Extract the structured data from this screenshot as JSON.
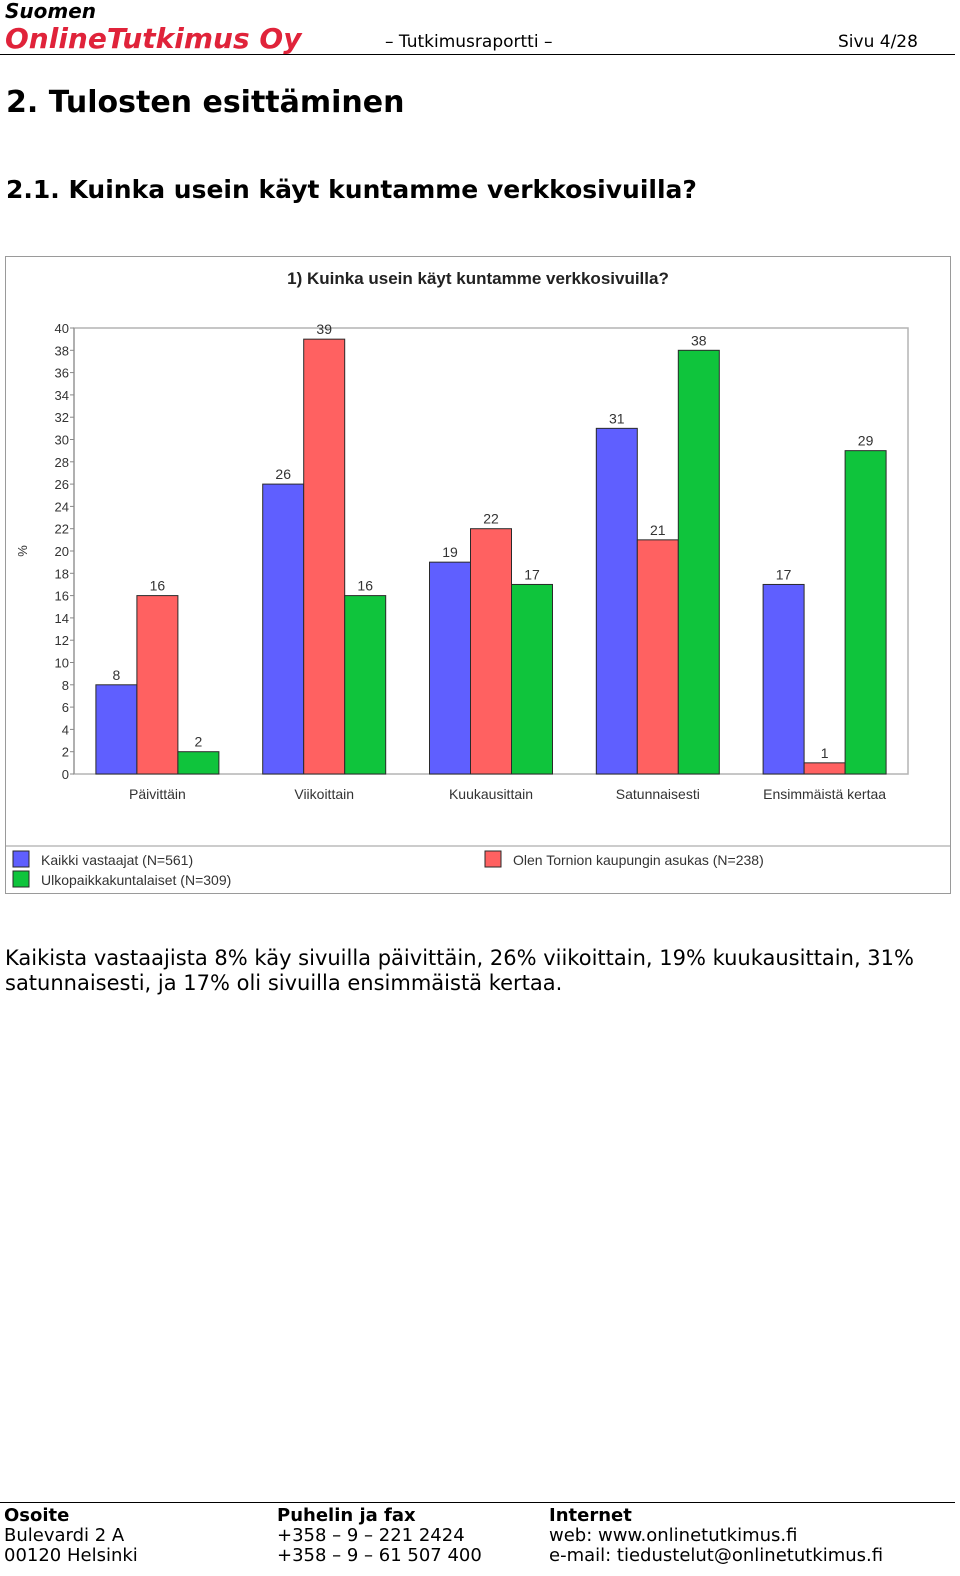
{
  "header": {
    "company_line1": "Suomen",
    "company_line2": "OnlineTutkimus Oy",
    "doc_type": "– Tutkimusraportti –",
    "page_label": "Sivu 4/28"
  },
  "section_title": "2. Tulosten esittäminen",
  "subsection_title": "2.1. Kuinka usein käyt kuntamme verkkosivuilla?",
  "chart_data": {
    "type": "bar",
    "title": "1) Kuinka usein käyt kuntamme verkkosivuilla?",
    "ylabel": "%",
    "xlabel": "",
    "ylim": [
      0,
      40
    ],
    "yticks": [
      0,
      2,
      4,
      6,
      8,
      10,
      12,
      14,
      16,
      18,
      20,
      22,
      24,
      26,
      28,
      30,
      32,
      34,
      36,
      38,
      40
    ],
    "grid": false,
    "legend_position": "bottom",
    "categories": [
      "Päivittäin",
      "Viikoittain",
      "Kuukausittain",
      "Satunnaisesti",
      "Ensimmäistä kertaa"
    ],
    "series": [
      {
        "name": "Kaikki vastaajat (N=561)",
        "color": "#5f5fff",
        "values": [
          8,
          26,
          19,
          31,
          17
        ]
      },
      {
        "name": "Olen Tornion kaupungin asukas (N=238)",
        "color": "#ff6161",
        "values": [
          16,
          39,
          22,
          21,
          1
        ]
      },
      {
        "name": "Ulkopaikkakuntalaiset (N=309)",
        "color": "#0fc43c",
        "values": [
          2,
          16,
          17,
          38,
          29
        ]
      }
    ]
  },
  "paragraph": "Kaikista vastaajista 8% käy sivuilla päivittäin, 26% viikoittain, 19% kuukausittain, 31% satunnaisesti, ja 17% oli sivuilla ensimmäistä kertaa.",
  "footer": {
    "address": {
      "heading": "Osoite",
      "line1": "Bulevardi 2 A",
      "line2": "00120 Helsinki"
    },
    "phone": {
      "heading": "Puhelin ja fax",
      "line1": "+358 – 9 – 221 2424",
      "line2": "+358 – 9 – 61 507 400"
    },
    "internet": {
      "heading": "Internet",
      "line1": "web: www.onlinetutkimus.fi",
      "line2": "e-mail: tiedustelut@onlinetutkimus.fi"
    }
  }
}
